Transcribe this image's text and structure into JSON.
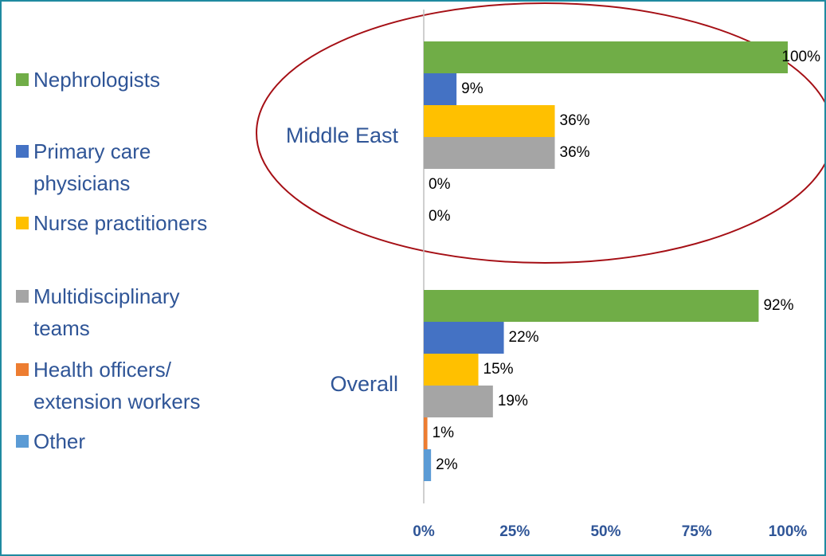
{
  "chart_data": {
    "type": "hbar",
    "categories": [
      "Middle East",
      "Overall"
    ],
    "series": [
      {
        "name": "Nephrologists",
        "color": "#70ad47",
        "values": [
          100,
          92
        ],
        "value_labels": [
          "100%",
          "92%"
        ]
      },
      {
        "name": "Primary care physicians",
        "color": "#4472c4",
        "values": [
          9,
          22
        ],
        "value_labels": [
          "9%",
          "22%"
        ]
      },
      {
        "name": "Nurse practitioners",
        "color": "#ffc000",
        "values": [
          36,
          15
        ],
        "value_labels": [
          "36%",
          "15%"
        ]
      },
      {
        "name": "Multidisciplinary teams",
        "color": "#a5a5a5",
        "values": [
          36,
          19
        ],
        "value_labels": [
          "36%",
          "19%"
        ]
      },
      {
        "name": "Health officers/ extension workers",
        "color": "#ed7d31",
        "values": [
          0,
          1
        ],
        "value_labels": [
          "0%",
          "1%"
        ]
      },
      {
        "name": "Other",
        "color": "#5b9bd5",
        "values": [
          0,
          2
        ],
        "value_labels": [
          "0%",
          "2%"
        ]
      }
    ],
    "xlim": [
      0,
      100
    ],
    "xticks": [
      {
        "value": 0,
        "label": "0%"
      },
      {
        "value": 25,
        "label": "25%"
      },
      {
        "value": 50,
        "label": "50%"
      },
      {
        "value": 75,
        "label": "75%"
      },
      {
        "value": 100,
        "label": "100%"
      }
    ],
    "legend": "left"
  }
}
